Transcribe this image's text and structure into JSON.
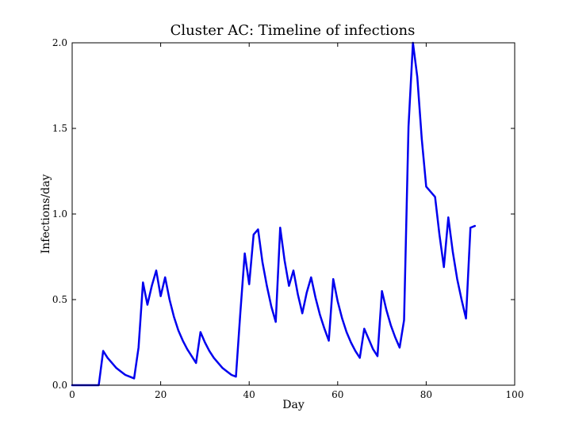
{
  "chart_data": {
    "type": "line",
    "title": "Cluster AC: Timeline of infections",
    "xlabel": "Day",
    "ylabel": "Infections/day",
    "xlim": [
      0,
      100
    ],
    "ylim": [
      0,
      2.0
    ],
    "xticks": [
      0,
      20,
      40,
      60,
      80,
      100
    ],
    "xtick_labels": [
      "0",
      "20",
      "40",
      "60",
      "80",
      "100"
    ],
    "yticks": [
      0,
      0.5,
      1.0,
      1.5,
      2.0
    ],
    "ytick_labels": [
      "0.0",
      "0.5",
      "1.0",
      "1.5",
      "2.0"
    ],
    "grid": false,
    "series": [
      {
        "color": "#0000ee",
        "x": [
          0,
          1,
          2,
          3,
          4,
          5,
          6,
          7,
          8,
          9,
          10,
          11,
          12,
          13,
          14,
          15,
          16,
          17,
          18,
          19,
          20,
          21,
          22,
          23,
          24,
          25,
          26,
          27,
          28,
          29,
          30,
          31,
          32,
          33,
          34,
          35,
          36,
          37,
          38,
          39,
          40,
          41,
          42,
          43,
          44,
          45,
          46,
          47,
          48,
          49,
          50,
          51,
          52,
          53,
          54,
          55,
          56,
          57,
          58,
          59,
          60,
          61,
          62,
          63,
          64,
          65,
          66,
          67,
          68,
          69,
          70,
          71,
          72,
          73,
          74,
          75,
          76,
          77,
          78,
          79,
          80,
          81,
          82,
          83,
          84,
          85,
          86,
          87,
          88,
          89,
          90,
          91
        ],
        "y": [
          0,
          0,
          0,
          0,
          0,
          0,
          0,
          0.2,
          0.16,
          0.13,
          0.1,
          0.08,
          0.06,
          0.05,
          0.04,
          0.22,
          0.6,
          0.47,
          0.58,
          0.67,
          0.52,
          0.63,
          0.5,
          0.4,
          0.32,
          0.26,
          0.21,
          0.17,
          0.13,
          0.31,
          0.25,
          0.2,
          0.16,
          0.13,
          0.1,
          0.08,
          0.06,
          0.05,
          0.42,
          0.77,
          0.59,
          0.88,
          0.91,
          0.72,
          0.58,
          0.46,
          0.37,
          0.92,
          0.73,
          0.58,
          0.67,
          0.53,
          0.42,
          0.54,
          0.63,
          0.51,
          0.41,
          0.33,
          0.26,
          0.62,
          0.49,
          0.39,
          0.31,
          0.25,
          0.2,
          0.16,
          0.33,
          0.27,
          0.21,
          0.17,
          0.55,
          0.44,
          0.35,
          0.28,
          0.22,
          0.38,
          1.51,
          2.0,
          1.8,
          1.44,
          1.16,
          1.13,
          1.1,
          0.88,
          0.69,
          0.98,
          0.78,
          0.62,
          0.5,
          0.39,
          0.92,
          0.93
        ]
      }
    ]
  }
}
